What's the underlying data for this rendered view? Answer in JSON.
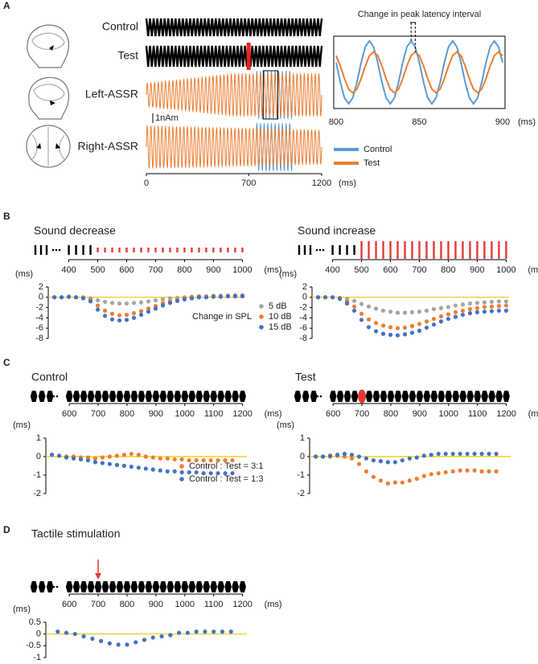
{
  "panel_labels": [
    "A",
    "B",
    "C",
    "D"
  ],
  "chart_data": [
    {
      "type": "waveform",
      "row_labels": [
        "Control",
        "Test",
        "Left-ASSR",
        "Right-ASSR"
      ],
      "scale_label": "1nAm",
      "xlim": [
        0,
        1200
      ],
      "xticks": [
        0,
        700,
        1200
      ],
      "x_unit": "(ms)",
      "stimulus": {
        "interval": 25,
        "odd_at": 700,
        "color": "#e8231f"
      },
      "colors": {
        "stimulus": "#000000",
        "control": "#5b9bd5",
        "test": "#ed7d31"
      }
    },
    {
      "type": "line",
      "title": "Change in peak latency interval",
      "x": [
        800,
        802.5,
        805,
        807.5,
        810,
        812.5,
        815,
        817.5,
        820,
        822.5,
        825,
        827.5,
        830,
        832.5,
        835,
        837.5,
        840,
        842.5,
        845,
        847.5,
        850,
        852.5,
        855,
        857.5,
        860,
        862.5,
        865,
        867.5,
        870,
        872.5,
        875,
        877.5,
        880,
        882.5,
        885,
        887.5,
        890,
        892.5,
        895,
        897.5,
        900
      ],
      "series": [
        {
          "name": "Control",
          "color": "#5b9bd5",
          "values": [
            0.31,
            -0.31,
            -0.81,
            -1,
            -0.81,
            -0.31,
            0.31,
            0.81,
            1,
            0.81,
            0.31,
            -0.31,
            -0.81,
            -1,
            -0.81,
            -0.31,
            0.31,
            0.81,
            1,
            0.81,
            0.31,
            -0.31,
            -0.81,
            -1,
            -0.81,
            -0.31,
            0.31,
            0.81,
            1,
            0.81,
            0.31,
            -0.31,
            -0.81,
            -1,
            -0.81,
            -0.31,
            0.31,
            0.81,
            1,
            0.81,
            0.31
          ]
        },
        {
          "name": "Test",
          "color": "#ed7d31",
          "values": [
            0.53,
            0.2,
            -0.2,
            -0.53,
            -0.65,
            -0.53,
            -0.2,
            0.2,
            0.53,
            0.65,
            0.53,
            0.2,
            -0.2,
            -0.53,
            -0.65,
            -0.53,
            -0.2,
            0.2,
            0.53,
            0.65,
            0.53,
            0.2,
            -0.2,
            -0.53,
            -0.65,
            -0.53,
            -0.2,
            0.2,
            0.53,
            0.65,
            0.53,
            0.2,
            -0.2,
            -0.53,
            -0.65,
            -0.53,
            -0.2,
            0.2,
            0.53,
            0.65,
            0.53
          ]
        }
      ],
      "xlim": [
        800,
        900
      ],
      "xticks": [
        800,
        850,
        900
      ],
      "ylim": [
        -1.15,
        1.15
      ],
      "x_unit": "(ms)",
      "legend": "below"
    },
    {
      "type": "scatter",
      "title": "Sound decrease",
      "stimulus": {
        "shape": "bar",
        "interval": 25,
        "change_at": 500,
        "change": "decrease",
        "color": "#e53935"
      },
      "xlim": [
        340,
        1010
      ],
      "xticks": [
        400,
        500,
        600,
        700,
        800,
        900,
        1000
      ],
      "x_unit": "(ms)",
      "ylim": [
        -8,
        2
      ],
      "yticks": [
        -8,
        -6,
        -4,
        -2,
        0,
        2
      ],
      "y_unit": "(ms)",
      "reference_line": {
        "value": 0,
        "color": "#f5c400"
      },
      "legend": "lower right",
      "legend_title": "Change in SPL",
      "x": [
        350,
        375,
        400,
        425,
        450,
        475,
        500,
        525,
        550,
        575,
        600,
        625,
        650,
        675,
        700,
        725,
        750,
        775,
        800,
        825,
        850,
        875,
        900,
        925,
        950,
        975,
        1000
      ],
      "series": [
        {
          "name": "5 dB",
          "color": "#a5a5a5",
          "values": [
            0,
            0,
            0.1,
            0,
            0,
            -0.2,
            -0.6,
            -0.9,
            -1.1,
            -1.2,
            -1.2,
            -1.1,
            -1.0,
            -0.8,
            -0.6,
            -0.4,
            -0.2,
            -0.1,
            0,
            0.1,
            0.2,
            0.2,
            0.3,
            0.3,
            0.3,
            0.4,
            0.4
          ]
        },
        {
          "name": "10 dB",
          "color": "#ed7d31",
          "values": [
            0,
            0,
            0.1,
            0,
            -0.1,
            -0.5,
            -1.6,
            -2.6,
            -3.2,
            -3.5,
            -3.4,
            -3.1,
            -2.7,
            -2.2,
            -1.7,
            -1.2,
            -0.8,
            -0.5,
            -0.2,
            0,
            0.1,
            0.1,
            0.2,
            0.2,
            0.3,
            0.3,
            0.3
          ]
        },
        {
          "name": "15 dB",
          "color": "#4472c4",
          "values": [
            0,
            0,
            0.1,
            0,
            -0.2,
            -0.8,
            -2.4,
            -3.6,
            -4.3,
            -4.5,
            -4.4,
            -4.0,
            -3.4,
            -2.8,
            -2.2,
            -1.6,
            -1.1,
            -0.7,
            -0.4,
            -0.2,
            0,
            0,
            0.1,
            0.1,
            0.2,
            0.2,
            0.2
          ]
        }
      ]
    },
    {
      "type": "scatter",
      "title": "Sound increase",
      "stimulus": {
        "shape": "bar",
        "interval": 25,
        "change_at": 500,
        "change": "increase",
        "color": "#e53935"
      },
      "xlim": [
        340,
        1010
      ],
      "xticks": [
        400,
        500,
        600,
        700,
        800,
        900,
        1000
      ],
      "x_unit": "(ms)",
      "ylim": [
        -8,
        2
      ],
      "yticks": [
        -8,
        -6,
        -4,
        -2,
        0,
        2
      ],
      "y_unit": "(ms)",
      "reference_line": {
        "value": 0,
        "color": "#f5c400"
      },
      "x": [
        350,
        375,
        400,
        425,
        450,
        475,
        500,
        525,
        550,
        575,
        600,
        625,
        650,
        675,
        700,
        725,
        750,
        775,
        800,
        825,
        850,
        875,
        900,
        925,
        950,
        975,
        1000
      ],
      "series": [
        {
          "color": "#a5a5a5",
          "values": [
            0,
            0,
            0,
            -0.1,
            -0.3,
            -0.7,
            -1.3,
            -1.8,
            -2.2,
            -2.6,
            -2.8,
            -3.0,
            -3.0,
            -2.9,
            -2.8,
            -2.6,
            -2.3,
            -2.1,
            -1.9,
            -1.6,
            -1.4,
            -1.2,
            -1.1,
            -1.0,
            -0.9,
            -0.8,
            -0.8
          ]
        },
        {
          "color": "#ed7d31",
          "values": [
            0,
            0,
            0,
            -0.2,
            -0.8,
            -1.8,
            -3.2,
            -4.3,
            -5.0,
            -5.5,
            -5.8,
            -6.0,
            -5.9,
            -5.6,
            -5.2,
            -4.7,
            -4.2,
            -3.7,
            -3.3,
            -2.9,
            -2.6,
            -2.3,
            -2.1,
            -1.9,
            -1.8,
            -1.7,
            -1.6
          ]
        },
        {
          "color": "#4472c4",
          "values": [
            0,
            0,
            0,
            -0.3,
            -1.2,
            -2.6,
            -4.4,
            -5.8,
            -6.6,
            -7.1,
            -7.3,
            -7.4,
            -7.2,
            -6.9,
            -6.5,
            -5.9,
            -5.3,
            -4.7,
            -4.2,
            -3.8,
            -3.4,
            -3.1,
            -2.9,
            -2.8,
            -2.7,
            -2.6,
            -2.6
          ]
        }
      ]
    },
    {
      "type": "scatter",
      "title": "Control",
      "stimulus": {
        "shape": "hexagon",
        "interval": 25
      },
      "xlim": [
        530,
        1215
      ],
      "xticks": [
        600,
        700,
        800,
        900,
        1000,
        1100,
        1200
      ],
      "x_unit": "(ms)",
      "ylim": [
        -2,
        1
      ],
      "yticks": [
        -2,
        -1,
        0,
        1
      ],
      "y_unit": "(ms)",
      "reference_line": {
        "value": 0,
        "color": "#f5c400"
      },
      "legend": "lower right",
      "x": [
        540,
        565,
        590,
        615,
        640,
        665,
        690,
        715,
        740,
        765,
        790,
        815,
        840,
        865,
        890,
        915,
        940,
        965,
        990,
        1015,
        1040,
        1065,
        1090,
        1115,
        1140,
        1165
      ],
      "series": [
        {
          "name": "Control : Test = 3:1",
          "color": "#ed7d31",
          "values": [
            0.1,
            0.05,
            0,
            0,
            -0.05,
            -0.05,
            -0.1,
            -0.05,
            0,
            0.05,
            0.1,
            0.15,
            0.1,
            0,
            -0.05,
            -0.1,
            -0.1,
            -0.15,
            -0.15,
            -0.2,
            -0.2,
            -0.2,
            -0.2,
            -0.2,
            -0.2,
            -0.2
          ]
        },
        {
          "name": "Control : Test = 1:3",
          "color": "#4472c4",
          "values": [
            0.1,
            0.05,
            -0.05,
            -0.1,
            -0.15,
            -0.2,
            -0.3,
            -0.35,
            -0.4,
            -0.45,
            -0.5,
            -0.55,
            -0.6,
            -0.65,
            -0.7,
            -0.75,
            -0.8,
            -0.8,
            -0.85,
            -0.85,
            -0.85,
            -0.9,
            -0.9,
            -0.9,
            -0.9,
            -0.9
          ]
        }
      ]
    },
    {
      "type": "scatter",
      "title": "Test",
      "stimulus": {
        "shape": "hexagon",
        "interval": 25,
        "odd_at": 700,
        "color": "#e53935"
      },
      "xlim": [
        530,
        1215
      ],
      "xticks": [
        600,
        700,
        800,
        900,
        1000,
        1100,
        1200
      ],
      "x_unit": "(ms)",
      "ylim": [
        -2,
        1
      ],
      "yticks": [
        -2,
        -1,
        0,
        1
      ],
      "y_unit": "(ms)",
      "reference_line": {
        "value": 0,
        "color": "#f5c400"
      },
      "x": [
        540,
        565,
        590,
        615,
        640,
        665,
        690,
        715,
        740,
        765,
        790,
        815,
        840,
        865,
        890,
        915,
        940,
        965,
        990,
        1015,
        1040,
        1065,
        1090,
        1115,
        1140,
        1165
      ],
      "series": [
        {
          "color": "#ed7d31",
          "values": [
            0,
            0,
            0,
            0.05,
            0,
            -0.1,
            -0.4,
            -0.8,
            -1.1,
            -1.3,
            -1.45,
            -1.4,
            -1.4,
            -1.3,
            -1.2,
            -1.05,
            -0.95,
            -0.9,
            -0.85,
            -0.8,
            -0.75,
            -0.75,
            -0.75,
            -0.8,
            -0.8,
            -0.8
          ]
        },
        {
          "color": "#4472c4",
          "values": [
            0,
            0,
            0.05,
            0.1,
            0.15,
            0.1,
            0,
            -0.1,
            -0.2,
            -0.25,
            -0.3,
            -0.3,
            -0.2,
            -0.1,
            -0.05,
            0.05,
            0.1,
            0.15,
            0.15,
            0.15,
            0.15,
            0.15,
            0.15,
            0.15,
            0.15,
            0.15
          ]
        }
      ]
    },
    {
      "type": "scatter",
      "title": "Tactile stimulation",
      "stimulus": {
        "shape": "hexagon",
        "interval": 25,
        "arrow_at": 700,
        "color": "#e53935"
      },
      "xlim": [
        530,
        1215
      ],
      "xticks": [
        600,
        700,
        800,
        900,
        1000,
        1100,
        1200
      ],
      "x_unit": "(ms)",
      "ylim": [
        -1,
        0.5
      ],
      "yticks": [
        -1,
        -0.5,
        0,
        0.5
      ],
      "y_unit": "(ms)",
      "reference_line": {
        "value": 0,
        "color": "#f5c400"
      },
      "x": [
        560,
        590,
        620,
        650,
        680,
        710,
        740,
        770,
        800,
        830,
        860,
        890,
        920,
        950,
        980,
        1010,
        1040,
        1070,
        1100,
        1130,
        1160
      ],
      "series": [
        {
          "color": "#4472c4",
          "values": [
            0.1,
            0.05,
            0,
            -0.1,
            -0.2,
            -0.3,
            -0.4,
            -0.45,
            -0.45,
            -0.35,
            -0.25,
            -0.15,
            -0.1,
            -0.05,
            0.05,
            0.05,
            0.1,
            0.1,
            0.1,
            0.1,
            0.1
          ]
        }
      ]
    }
  ]
}
